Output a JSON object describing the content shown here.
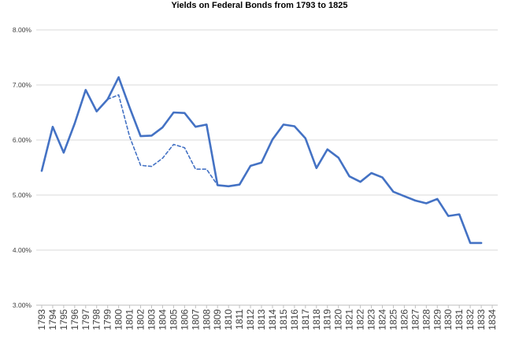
{
  "chart_data": {
    "type": "line",
    "title": "Yields on Federal Bonds from 1793 to 1825",
    "xlabel": "",
    "ylabel": "",
    "ylim": [
      3.0,
      8.0
    ],
    "y_tick_labels": [
      "3.00%",
      "4.00%",
      "5.00%",
      "6.00%",
      "7.00%",
      "8.00%"
    ],
    "y_tick_values": [
      3.0,
      4.0,
      5.0,
      6.0,
      7.0,
      8.0
    ],
    "categories": [
      "1793",
      "1794",
      "1795",
      "1796",
      "1797",
      "1798",
      "1799",
      "1800",
      "1801",
      "1802",
      "1803",
      "1804",
      "1805",
      "1806",
      "1807",
      "1808",
      "1809",
      "1810",
      "1811",
      "1812",
      "1813",
      "1814",
      "1815",
      "1816",
      "1817",
      "1818",
      "1819",
      "1820",
      "1821",
      "1822",
      "1823",
      "1824",
      "1825",
      "1826",
      "1827",
      "1828",
      "1829",
      "1830",
      "1831",
      "1832",
      "1833",
      "1834"
    ],
    "grid": true,
    "legend": "none",
    "series": [
      {
        "style": "solid",
        "color": "#4472c4",
        "values": [
          5.44,
          6.24,
          5.77,
          6.3,
          6.91,
          6.52,
          6.74,
          7.14,
          6.59,
          6.07,
          6.08,
          6.23,
          6.5,
          6.49,
          6.24,
          6.28,
          5.18,
          5.16,
          5.19,
          5.53,
          5.59,
          6.01,
          6.28,
          6.25,
          6.03,
          5.49,
          5.83,
          5.68,
          5.34,
          5.24,
          5.4,
          5.32,
          5.06,
          4.98,
          4.9,
          4.85,
          4.93,
          4.62,
          4.65,
          4.13,
          4.13,
          null
        ]
      },
      {
        "style": "dashed",
        "color": "#4472c4",
        "values": [
          null,
          null,
          null,
          null,
          null,
          null,
          6.74,
          6.82,
          6.06,
          5.54,
          5.52,
          5.67,
          5.92,
          5.86,
          5.47,
          5.47,
          5.18,
          null,
          null,
          null,
          null,
          null,
          null,
          null,
          null,
          null,
          null,
          null,
          null,
          null,
          null,
          null,
          null,
          null,
          null,
          null,
          null,
          null,
          null,
          null,
          null,
          null
        ]
      }
    ]
  }
}
